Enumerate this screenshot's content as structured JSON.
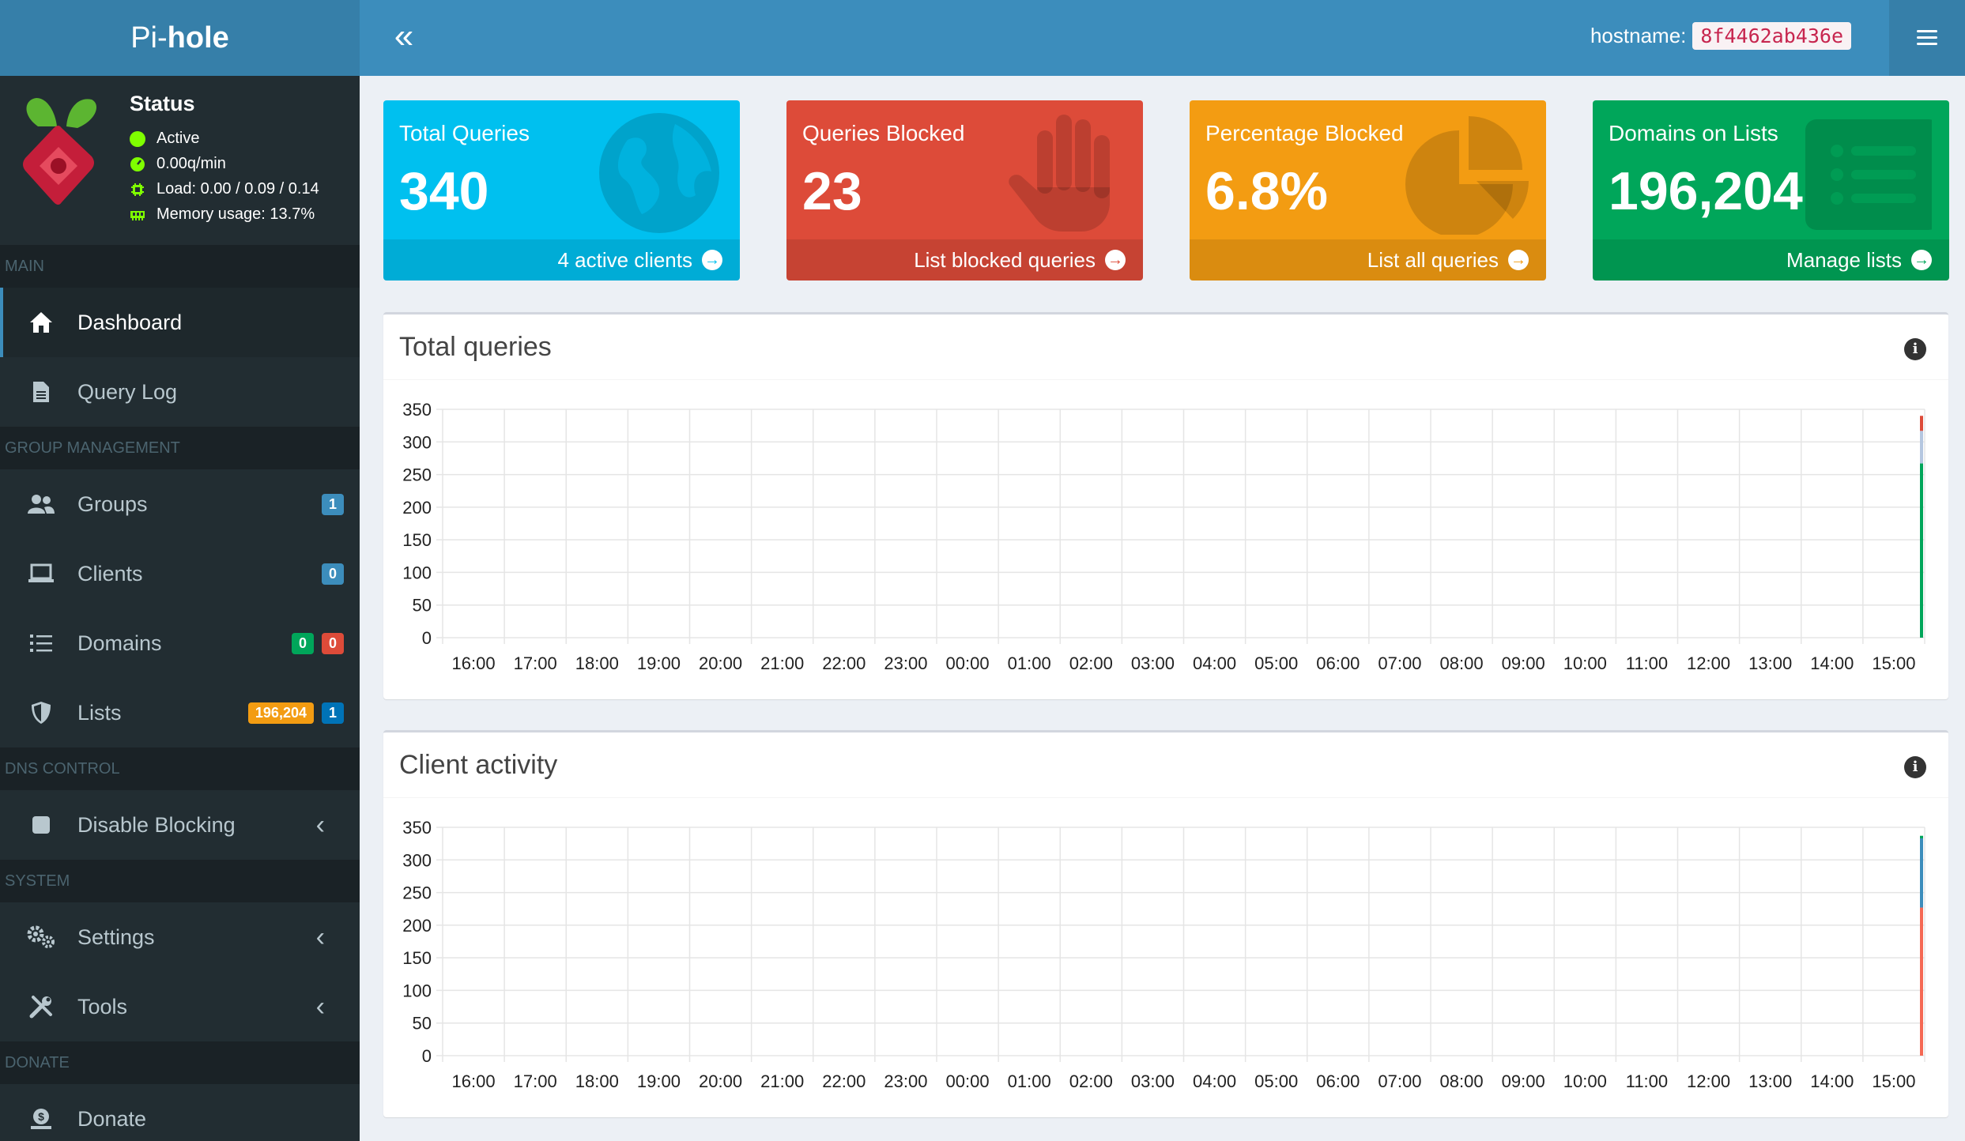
{
  "header": {
    "logo_light": "Pi-",
    "logo_bold": "hole",
    "collapse_icon": "«",
    "hostname_label": "hostname:",
    "hostname_value": "8f4462ab436e"
  },
  "sidebar": {
    "status": {
      "title": "Status",
      "active": "Active",
      "rate": "0.00q/min",
      "load": "Load: 0.00 / 0.09 / 0.14",
      "memory": "Memory usage: 13.7%"
    },
    "sections": {
      "main": "MAIN",
      "group": "GROUP MANAGEMENT",
      "dns": "DNS CONTROL",
      "system": "SYSTEM",
      "donate": "DONATE"
    },
    "items": {
      "dashboard": "Dashboard",
      "querylog": "Query Log",
      "groups": "Groups",
      "groups_badge": "1",
      "clients": "Clients",
      "clients_badge": "0",
      "domains": "Domains",
      "domains_badge_allow": "0",
      "domains_badge_deny": "0",
      "lists": "Lists",
      "lists_badge_domains": "196,204",
      "lists_badge_count": "1",
      "disable": "Disable Blocking",
      "settings": "Settings",
      "tools": "Tools",
      "donate": "Donate"
    }
  },
  "boxes": [
    {
      "label": "Total Queries",
      "value": "340",
      "link": "4 active clients",
      "color": "#00c0ef"
    },
    {
      "label": "Queries Blocked",
      "value": "23",
      "link": "List blocked queries",
      "color": "#dd4b39"
    },
    {
      "label": "Percentage Blocked",
      "value": "6.8%",
      "link": "List all queries",
      "color": "#f39c12"
    },
    {
      "label": "Domains on Lists",
      "value": "196,204",
      "link": "Manage lists",
      "color": "#00a65a"
    }
  ],
  "panels": {
    "total_title": "Total queries",
    "client_title": "Client activity"
  },
  "chart_data": [
    {
      "type": "bar",
      "title": "Total queries",
      "categories": [
        "16:00",
        "17:00",
        "18:00",
        "19:00",
        "20:00",
        "21:00",
        "22:00",
        "23:00",
        "00:00",
        "01:00",
        "02:00",
        "03:00",
        "04:00",
        "05:00",
        "06:00",
        "07:00",
        "08:00",
        "09:00",
        "10:00",
        "11:00",
        "12:00",
        "13:00",
        "14:00",
        "15:00"
      ],
      "ylim": [
        0,
        350
      ],
      "yticks": [
        0,
        50,
        100,
        150,
        200,
        250,
        300,
        350
      ],
      "grid": true,
      "series": [
        {
          "color": "#00a65a",
          "values": [
            0,
            0,
            0,
            0,
            0,
            0,
            0,
            0,
            0,
            0,
            0,
            0,
            0,
            0,
            0,
            0,
            0,
            0,
            0,
            0,
            0,
            0,
            0,
            267
          ]
        },
        {
          "color": "#b5c7e0",
          "values": [
            0,
            0,
            0,
            0,
            0,
            0,
            0,
            0,
            0,
            0,
            0,
            0,
            0,
            0,
            0,
            0,
            0,
            0,
            0,
            0,
            0,
            0,
            0,
            50
          ]
        },
        {
          "color": "#dd4b39",
          "values": [
            0,
            0,
            0,
            0,
            0,
            0,
            0,
            0,
            0,
            0,
            0,
            0,
            0,
            0,
            0,
            0,
            0,
            0,
            0,
            0,
            0,
            0,
            0,
            23
          ]
        }
      ]
    },
    {
      "type": "bar",
      "title": "Client activity",
      "categories": [
        "16:00",
        "17:00",
        "18:00",
        "19:00",
        "20:00",
        "21:00",
        "22:00",
        "23:00",
        "00:00",
        "01:00",
        "02:00",
        "03:00",
        "04:00",
        "05:00",
        "06:00",
        "07:00",
        "08:00",
        "09:00",
        "10:00",
        "11:00",
        "12:00",
        "13:00",
        "14:00",
        "15:00"
      ],
      "ylim": [
        0,
        350
      ],
      "yticks": [
        0,
        50,
        100,
        150,
        200,
        250,
        300,
        350
      ],
      "grid": true,
      "series": [
        {
          "color": "#f56954",
          "values": [
            0,
            0,
            0,
            0,
            0,
            0,
            0,
            0,
            0,
            0,
            0,
            0,
            0,
            0,
            0,
            0,
            0,
            0,
            0,
            0,
            0,
            0,
            0,
            227
          ]
        },
        {
          "color": "#3c8dbc",
          "values": [
            0,
            0,
            0,
            0,
            0,
            0,
            0,
            0,
            0,
            0,
            0,
            0,
            0,
            0,
            0,
            0,
            0,
            0,
            0,
            0,
            0,
            0,
            0,
            106
          ]
        },
        {
          "color": "#00a65a",
          "values": [
            0,
            0,
            0,
            0,
            0,
            0,
            0,
            0,
            0,
            0,
            0,
            0,
            0,
            0,
            0,
            0,
            0,
            0,
            0,
            0,
            0,
            0,
            0,
            4
          ]
        }
      ]
    }
  ]
}
